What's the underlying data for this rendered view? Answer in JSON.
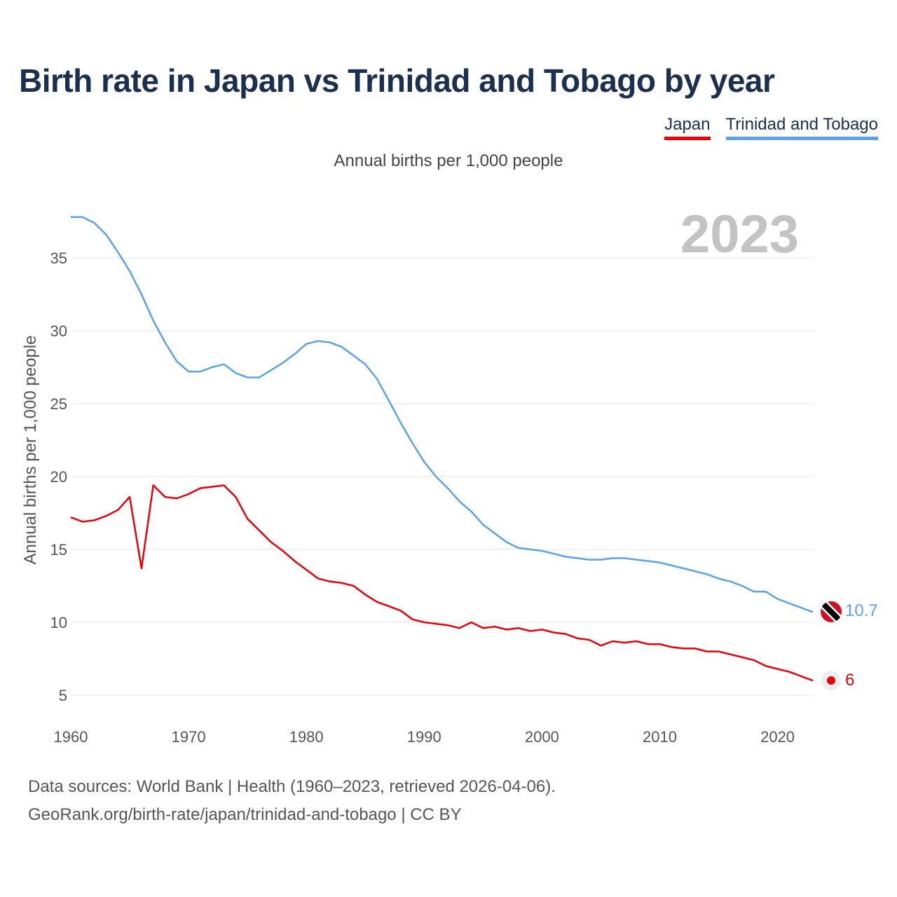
{
  "title": "Birth rate in Japan vs Trinidad and Tobago by year",
  "subtitle": "Annual births per 1,000 people",
  "footer": {
    "line1": "Data sources: World Bank | Health (1960–2023, retrieved 2026-04-06).",
    "line2": "GeoRank.org/birth-rate/japan/trinidad-and-tobago | CC BY"
  },
  "chart_data": {
    "type": "line",
    "title": "Birth rate in Japan vs Trinidad and Tobago by year",
    "xlabel": "",
    "ylabel": "Annual births per 1,000 people",
    "xlim": [
      1960,
      2023
    ],
    "ylim": [
      3,
      38
    ],
    "x_ticks": [
      "1960",
      "1970",
      "1980",
      "1990",
      "2000",
      "2010",
      "2020"
    ],
    "y_ticks": [
      "5",
      "10",
      "15",
      "20",
      "25",
      "30",
      "35"
    ],
    "year_label": "2023",
    "legend_position": "top-right",
    "x": [
      1960,
      1961,
      1962,
      1963,
      1964,
      1965,
      1966,
      1967,
      1968,
      1969,
      1970,
      1971,
      1972,
      1973,
      1974,
      1975,
      1976,
      1977,
      1978,
      1979,
      1980,
      1981,
      1982,
      1983,
      1984,
      1985,
      1986,
      1987,
      1988,
      1989,
      1990,
      1991,
      1992,
      1993,
      1994,
      1995,
      1996,
      1997,
      1998,
      1999,
      2000,
      2001,
      2002,
      2003,
      2004,
      2005,
      2006,
      2007,
      2008,
      2009,
      2010,
      2011,
      2012,
      2013,
      2014,
      2015,
      2016,
      2017,
      2018,
      2019,
      2020,
      2021,
      2022,
      2023
    ],
    "series": [
      {
        "name": "Japan",
        "color": "#e8000b",
        "end_label": "6",
        "values": [
          17.2,
          16.9,
          17.0,
          17.3,
          17.7,
          18.6,
          13.7,
          19.4,
          18.6,
          18.5,
          18.8,
          19.2,
          19.3,
          19.4,
          18.6,
          17.1,
          16.3,
          15.5,
          14.9,
          14.2,
          13.6,
          13.0,
          12.8,
          12.7,
          12.5,
          11.9,
          11.4,
          11.1,
          10.8,
          10.2,
          10.0,
          9.9,
          9.8,
          9.6,
          10.0,
          9.6,
          9.7,
          9.5,
          9.6,
          9.4,
          9.5,
          9.3,
          9.2,
          8.9,
          8.8,
          8.4,
          8.7,
          8.6,
          8.7,
          8.5,
          8.5,
          8.3,
          8.2,
          8.2,
          8.0,
          8.0,
          7.8,
          7.6,
          7.4,
          7.0,
          6.8,
          6.6,
          6.3,
          6.0
        ]
      },
      {
        "name": "Trinidad and Tobago",
        "color": "#5ba3e6",
        "end_label": "10.7",
        "values": [
          37.8,
          37.8,
          37.4,
          36.6,
          35.4,
          34.1,
          32.5,
          30.7,
          29.2,
          27.9,
          27.2,
          27.2,
          27.5,
          27.7,
          27.1,
          26.8,
          26.8,
          27.3,
          27.8,
          28.4,
          29.1,
          29.3,
          29.2,
          28.9,
          28.3,
          27.7,
          26.7,
          25.2,
          23.7,
          22.3,
          21.0,
          20.0,
          19.2,
          18.3,
          17.6,
          16.7,
          16.1,
          15.5,
          15.1,
          15.0,
          14.9,
          14.7,
          14.5,
          14.4,
          14.3,
          14.3,
          14.4,
          14.4,
          14.3,
          14.2,
          14.1,
          13.9,
          13.7,
          13.5,
          13.3,
          13.0,
          12.8,
          12.5,
          12.1,
          12.1,
          11.6,
          11.3,
          11.0,
          10.7
        ]
      }
    ]
  }
}
